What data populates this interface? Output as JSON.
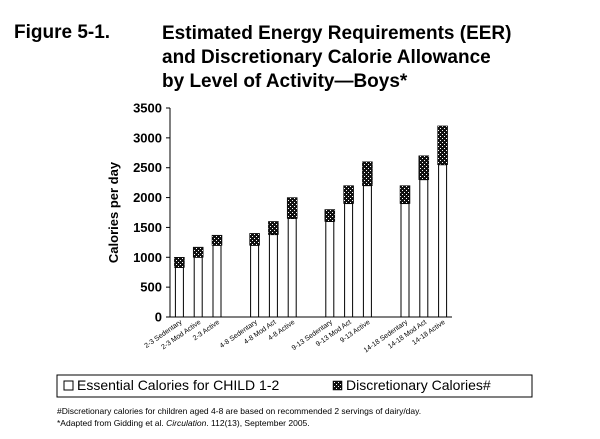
{
  "figure": {
    "label": "Figure 5-1.",
    "title_lines": [
      "Estimated Energy Requirements (EER)",
      "and Discretionary Calorie Allowance",
      "by Level of Activity—Boys*"
    ]
  },
  "footnotes": {
    "line1": "#Discretionary calories for children aged 4-8 are based on recommended 2 servings of dairy/day.",
    "line2_prefix": "*Adapted from Gidding et al. ",
    "line2_journal": "Circulation",
    "line2_suffix": ". 112(13), September 2005."
  },
  "chart_data": {
    "type": "bar",
    "stacked": true,
    "ylabel": "Calories per day",
    "xlabel": "",
    "ylim": [
      0,
      3500
    ],
    "yticks": [
      0,
      500,
      1000,
      1500,
      2000,
      2500,
      3000,
      3500
    ],
    "grid": false,
    "legend_position": "bottom",
    "categories": [
      "2-3 Sedentary",
      "2-3 Mod Active",
      "2-3 Active",
      "",
      "4-8 Sedentary",
      "4-8 Mod Act",
      "4-8 Active",
      "",
      "9-13 Sedentary",
      "9-13 Mod Act",
      "9-13 Active",
      "",
      "14-18 Sedentary",
      "14-18 Mod Act",
      "14-18 Active"
    ],
    "series": [
      {
        "name": "Essential Calories for CHILD 1-2",
        "color": "#ffffff",
        "values": [
          830,
          1000,
          1200,
          null,
          1200,
          1380,
          1650,
          null,
          1600,
          1900,
          2200,
          null,
          1900,
          2300,
          2550
        ]
      },
      {
        "name": "Discretionary Calories#",
        "color": "#111111",
        "values": [
          170,
          170,
          170,
          null,
          200,
          220,
          350,
          null,
          200,
          300,
          400,
          null,
          300,
          400,
          650
        ]
      }
    ]
  }
}
